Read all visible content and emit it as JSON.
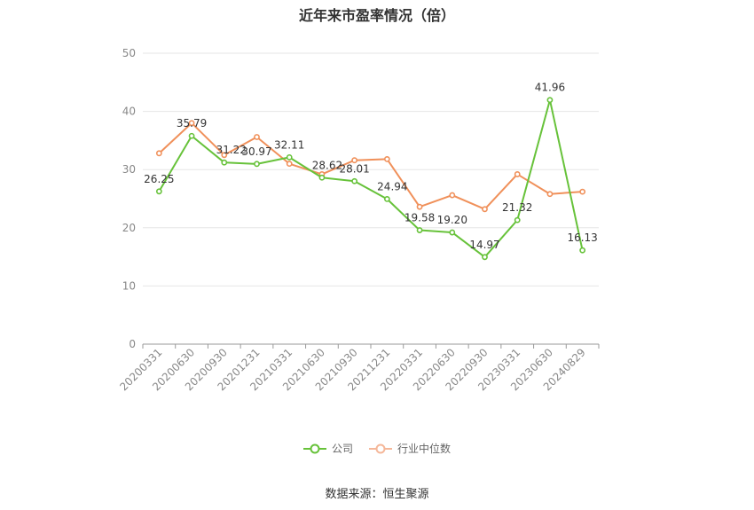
{
  "chart_data": {
    "type": "line",
    "title": "近年来市盈率情况（倍）",
    "categories": [
      "20200331",
      "20200630",
      "20200930",
      "20201231",
      "20210331",
      "20210630",
      "20210930",
      "20211231",
      "20220331",
      "20220630",
      "20220930",
      "20230331",
      "20230630",
      "20240829"
    ],
    "series": [
      {
        "name": "公司",
        "color": "#67c23a",
        "values": [
          26.25,
          35.79,
          31.22,
          30.97,
          32.11,
          28.62,
          28.01,
          24.94,
          19.58,
          19.2,
          14.97,
          21.32,
          41.96,
          16.13
        ],
        "labels": [
          "26.25",
          "35.79",
          "31.22",
          "30.97",
          "32.11",
          "28.62",
          "28.01",
          "24.94",
          "19.58",
          "19.20",
          "14.97",
          "21.32",
          "41.96",
          "16.13"
        ]
      },
      {
        "name": "行业中位数",
        "color": "#f0905a",
        "values": [
          32.8,
          38.0,
          32.5,
          35.6,
          31.0,
          29.2,
          31.6,
          31.8,
          23.6,
          25.6,
          23.2,
          29.2,
          25.8,
          26.2
        ]
      }
    ],
    "ylim": [
      0,
      50
    ],
    "yticks": [
      0,
      10,
      20,
      30,
      40,
      50
    ],
    "grid": true,
    "legend": "bottom-center"
  },
  "source": "数据来源：恒生聚源"
}
